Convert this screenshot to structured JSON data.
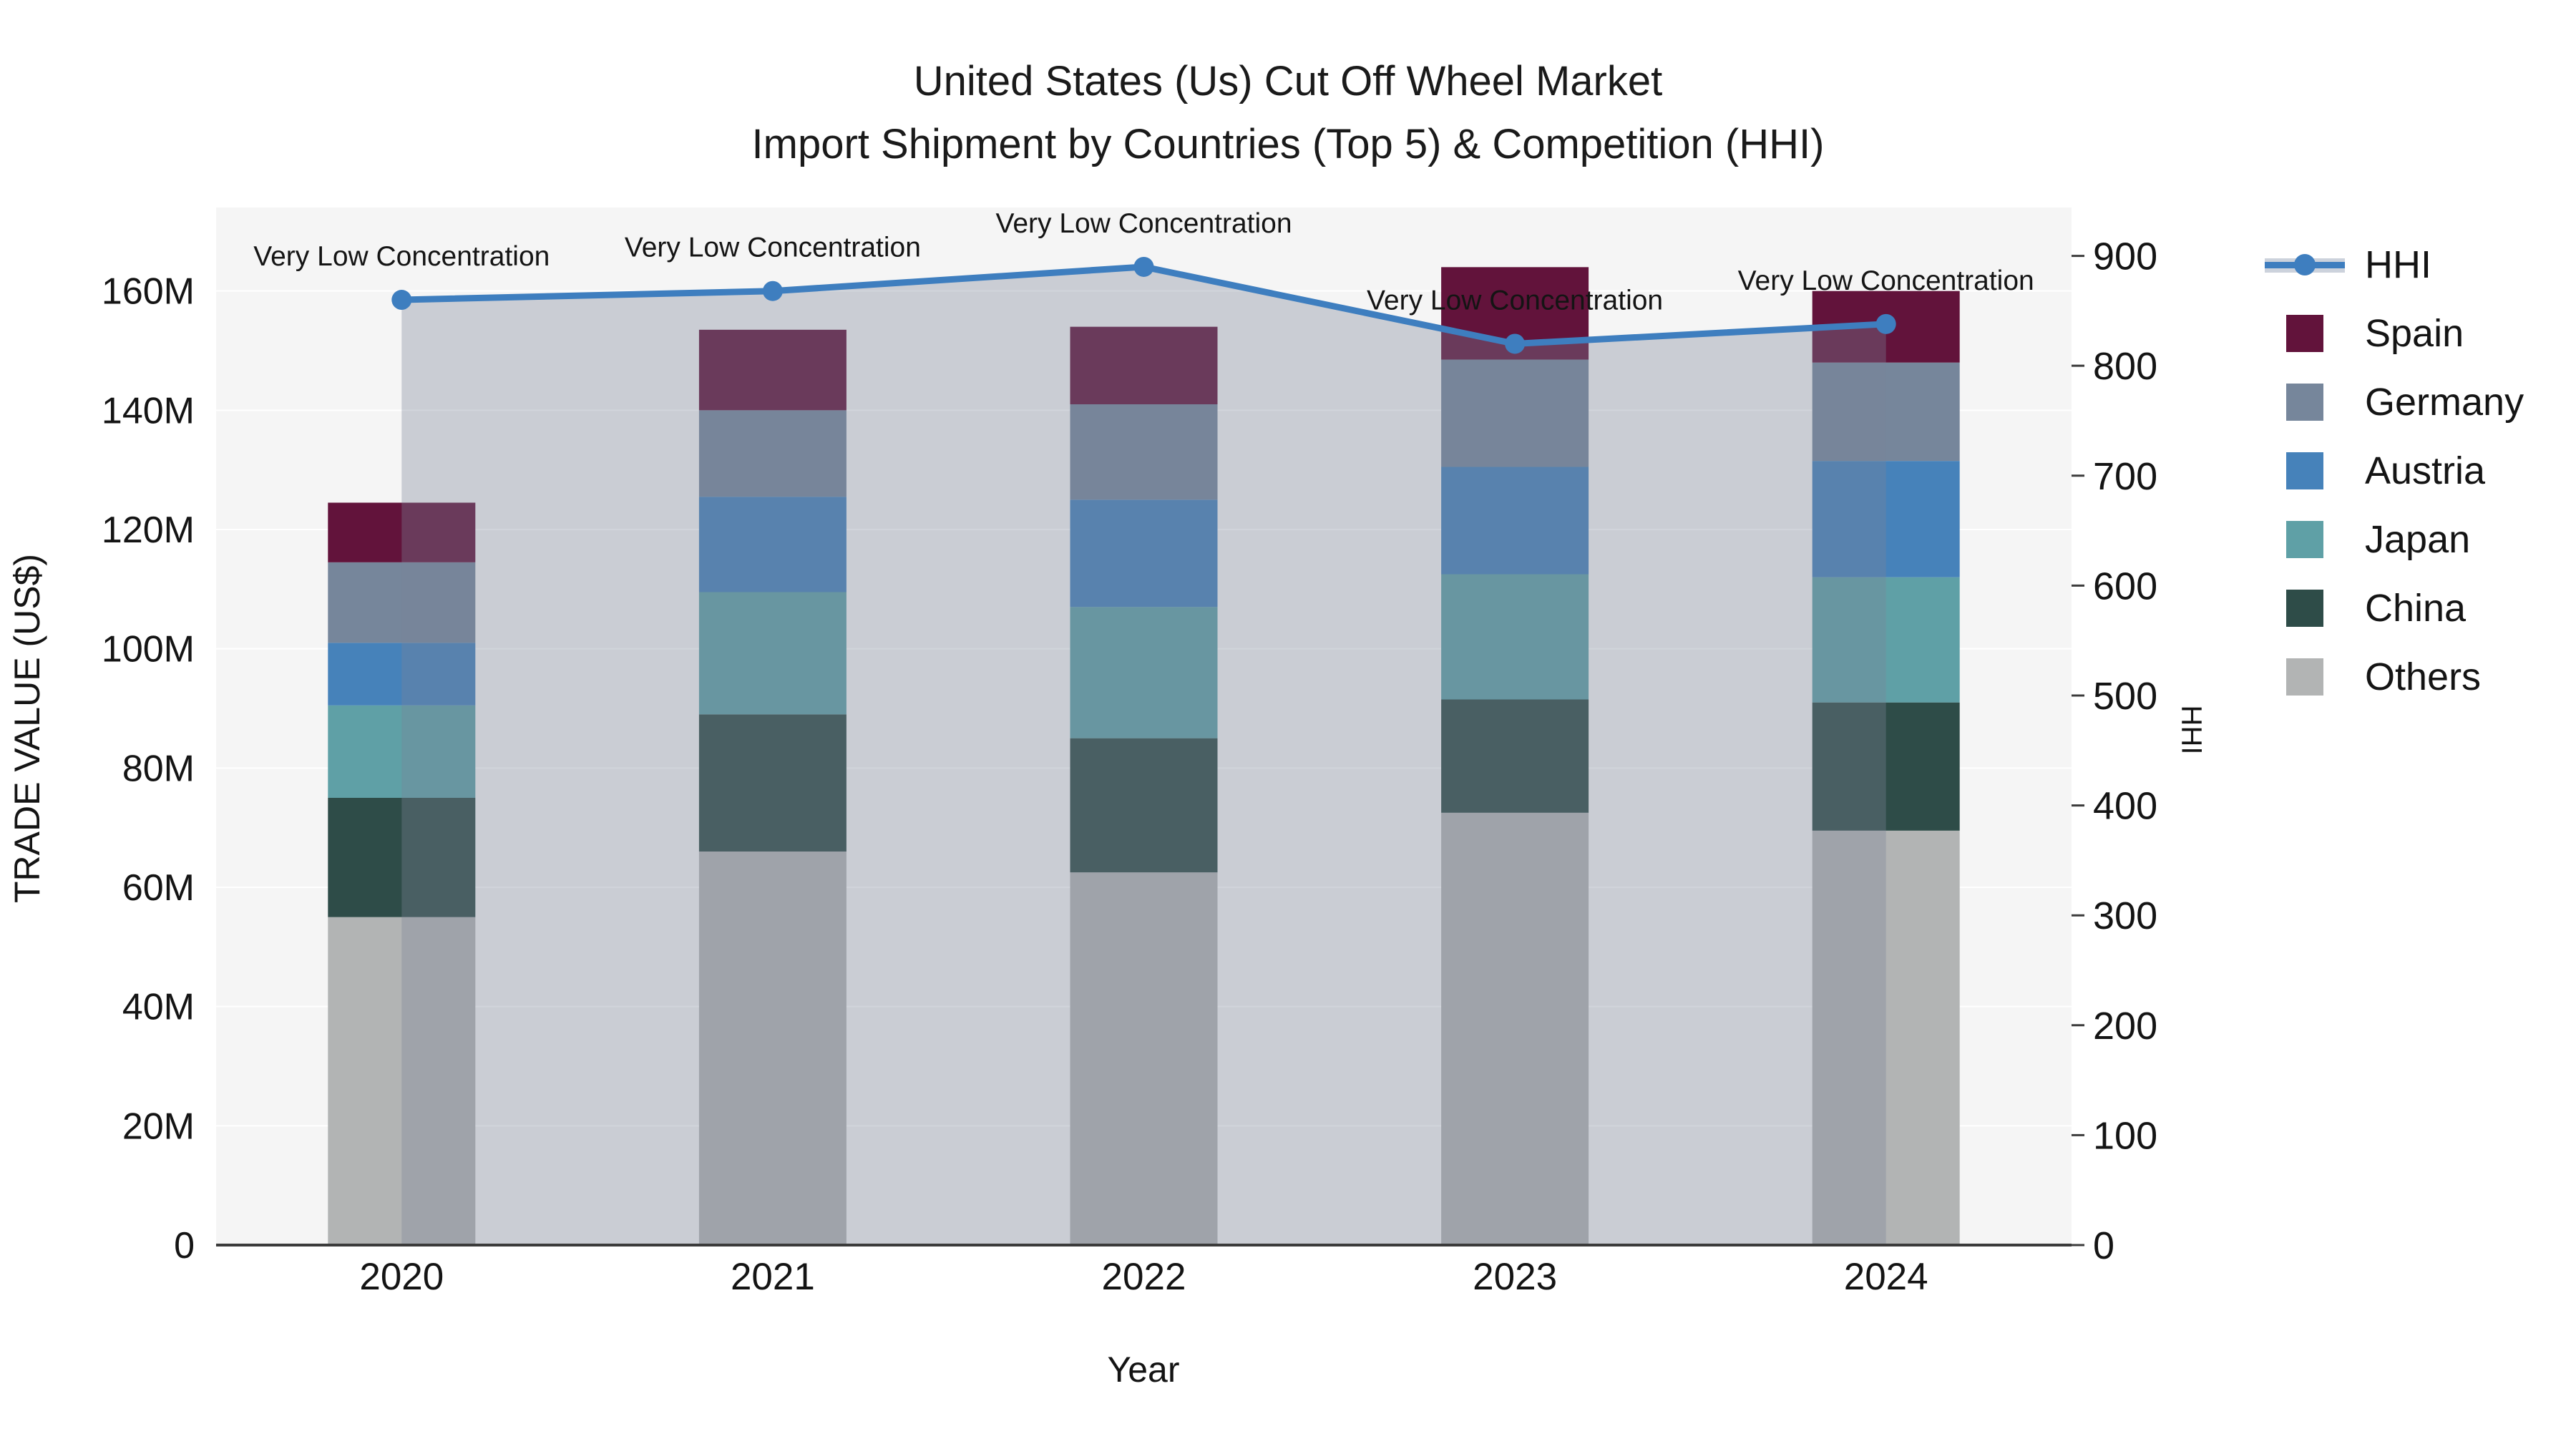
{
  "title": {
    "line1": "United States (Us) Cut Off Wheel Market",
    "line2": "Import Shipment by Countries (Top 5) & Competition (HHI)"
  },
  "axes": {
    "left_title": "TRADE VALUE (US$)",
    "right_title": "HHI",
    "x_title": "Year"
  },
  "chart_data": {
    "type": "stacked-bar+line",
    "title": "United States (Us) Cut Off Wheel Market Import Shipment by Countries (Top 5) & Competition (HHI)",
    "categories": [
      "2020",
      "2021",
      "2022",
      "2023",
      "2024"
    ],
    "series": [
      {
        "name": "Spain",
        "color": "#62133B",
        "values": [
          10,
          13.5,
          13,
          15.5,
          12
        ]
      },
      {
        "name": "Germany",
        "color": "#76869B",
        "values": [
          13.5,
          14.5,
          16,
          18,
          16.5
        ]
      },
      {
        "name": "Austria",
        "color": "#4682BA",
        "values": [
          10.5,
          16,
          18,
          18,
          19.5
        ]
      },
      {
        "name": "Japan",
        "color": "#5FA0A6",
        "values": [
          15.5,
          20.5,
          22,
          21,
          21
        ]
      },
      {
        "name": "China",
        "color": "#2E4C48",
        "values": [
          20,
          23,
          22.5,
          19,
          21.5
        ]
      },
      {
        "name": "Others",
        "color": "#B2B4B4",
        "values": [
          55,
          66,
          62.5,
          72.5,
          69.5
        ]
      }
    ],
    "stack_bottom_to_top": [
      "Others",
      "China",
      "Japan",
      "Austria",
      "Germany",
      "Spain"
    ],
    "line_series": {
      "name": "HHI",
      "color": "#3E7EBF",
      "fill_color": "rgba(123,131,151,0.35)",
      "axis": "right",
      "values": [
        860,
        868,
        890,
        820,
        838
      ],
      "annotation": "Very Low Concentration"
    },
    "y_left": {
      "unit": "M US$",
      "ticks": [
        0,
        20,
        40,
        60,
        80,
        100,
        120,
        140,
        160
      ],
      "tick_labels": [
        "0",
        "20M",
        "40M",
        "60M",
        "80M",
        "100M",
        "120M",
        "140M",
        "160M"
      ],
      "max": 174
    },
    "y_right": {
      "ticks": [
        0,
        100,
        200,
        300,
        400,
        500,
        600,
        700,
        800,
        900
      ],
      "max": 944
    },
    "xlabel": "Year",
    "ylabel_left": "TRADE VALUE (US$)",
    "ylabel_right": "HHI",
    "grid": true,
    "legend_position": "right",
    "plot_background": "#f5f5f5",
    "gridline_color": "#ffffff",
    "axis_line_color": "#3b3b3b",
    "text_color": "#141414"
  }
}
